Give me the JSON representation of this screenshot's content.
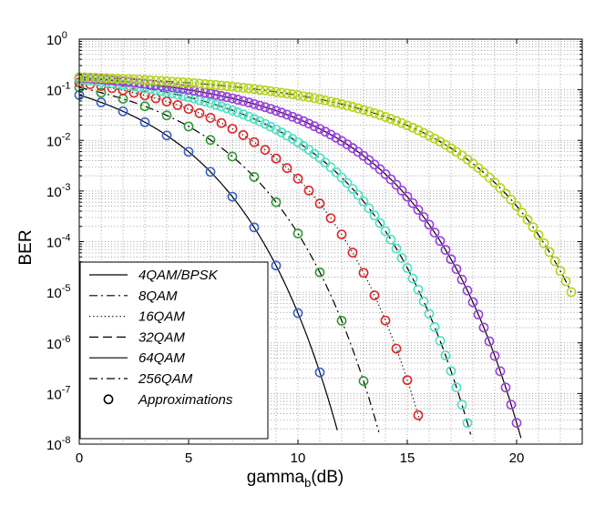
{
  "chart_data": {
    "type": "line",
    "scale_y": "log",
    "xlabel_main": "gamma",
    "xlabel_sub": "b",
    "xlabel_unit": "(dB)",
    "ylabel": "BER",
    "xlim": [
      0,
      23
    ],
    "ylim_exp": [
      -8,
      0
    ],
    "xticks": [
      0,
      5,
      10,
      15,
      20
    ],
    "xtick_labels": [
      "0",
      "5",
      "10",
      "15",
      "20"
    ],
    "ytick_exps": [
      0,
      -1,
      -2,
      -3,
      -4,
      -5,
      -6,
      -7,
      -8
    ],
    "ytick_base": "10",
    "ytick_exp_labels": [
      "0",
      "-1",
      "-2",
      "-3",
      "-4",
      "-5",
      "-6",
      "-7",
      "-8"
    ],
    "grid": "dotted-major-and-minor",
    "legend_location": "lower-left",
    "series": [
      {
        "name": "4QAM/BPSK",
        "style": "solid",
        "marker_color": "#3a5fcd",
        "M": 4,
        "x_start": 0,
        "x_end": 11.8
      },
      {
        "name": "8QAM",
        "style": "dashdot",
        "marker_color": "#2f9a2f",
        "M": 8,
        "x_start": 0,
        "x_end": 13.7
      },
      {
        "name": "16QAM",
        "style": "dotted",
        "marker_color": "#e32222",
        "M": 16,
        "x_start": 0,
        "x_end": 15.6
      },
      {
        "name": "32QAM",
        "style": "dashed",
        "marker_color": "#4fe0c4",
        "M": 32,
        "x_start": 0,
        "x_end": 17.9
      },
      {
        "name": "64QAM",
        "style": "solid",
        "marker_color": "#9b3fe0",
        "M": 64,
        "x_start": 0,
        "x_end": 20.2
      },
      {
        "name": "256QAM",
        "style": "dashdot",
        "marker_color": "#b5d41c",
        "M": 256,
        "x_start": 0,
        "x_end": 22.5
      }
    ],
    "approximations_label": "Approximations"
  }
}
